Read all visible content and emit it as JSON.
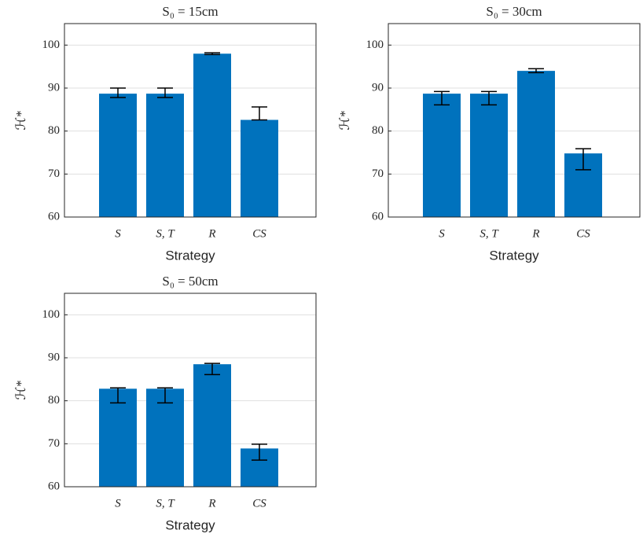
{
  "chart_data": [
    {
      "type": "bar",
      "title": "S₀ = 15cm",
      "xlabel": "Strategy",
      "ylabel": "ℋ*",
      "categories": [
        "S",
        "S, T",
        "R",
        "CS"
      ],
      "values": [
        88.7,
        88.7,
        98.0,
        82.6
      ],
      "err_minus": [
        0.9,
        0.9,
        0.2,
        0
      ],
      "err_plus": [
        1.3,
        1.3,
        0.2,
        3.0
      ],
      "color": "#0072bd",
      "ylim": [
        60,
        105
      ],
      "yticks": [
        60,
        70,
        80,
        90,
        100
      ],
      "grid": true
    },
    {
      "type": "bar",
      "title": "S₀ = 30cm",
      "xlabel": "Strategy",
      "ylabel": "ℋ*",
      "categories": [
        "S",
        "S, T",
        "R",
        "CS"
      ],
      "values": [
        88.7,
        88.7,
        94.0,
        74.8
      ],
      "err_minus": [
        2.6,
        2.6,
        0.4,
        3.8
      ],
      "err_plus": [
        0.5,
        0.5,
        0.5,
        1.1
      ],
      "color": "#0072bd",
      "ylim": [
        60,
        105
      ],
      "yticks": [
        60,
        70,
        80,
        90,
        100
      ],
      "grid": true
    },
    {
      "type": "bar",
      "title": "S₀ = 50cm",
      "xlabel": "Strategy",
      "ylabel": "ℋ*",
      "categories": [
        "S",
        "S, T",
        "R",
        "CS"
      ],
      "values": [
        82.8,
        82.8,
        88.5,
        68.9
      ],
      "err_minus": [
        3.3,
        3.3,
        2.4,
        2.7
      ],
      "err_plus": [
        0.2,
        0.2,
        0.2,
        1.0
      ],
      "color": "#0072bd",
      "ylim": [
        60,
        105
      ],
      "yticks": [
        60,
        70,
        80,
        90,
        100
      ],
      "grid": true
    }
  ]
}
